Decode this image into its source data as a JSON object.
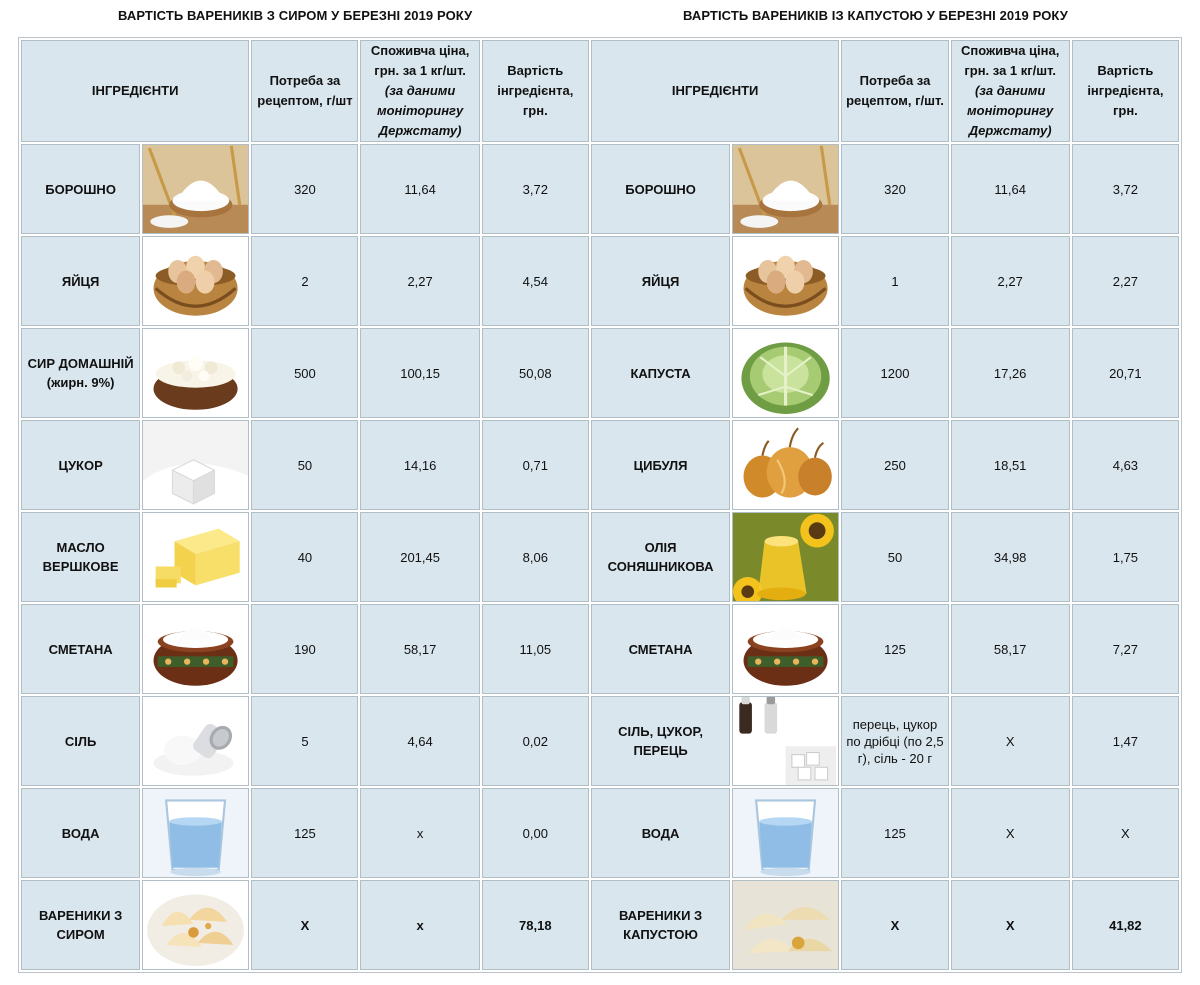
{
  "titles": {
    "left": "ВАРТІСТЬ ВАРЕНИКІВ З СИРОМ У БЕРЕЗНІ 2019 РОКУ",
    "right": "ВАРТІСТЬ ВАРЕНИКІВ ІЗ КАПУСТОЮ У БЕРЕЗНІ 2019 РОКУ"
  },
  "headers": {
    "ingredients": "ІНГРЕДІЄНТИ",
    "need_left": "Потреба за рецептом, г/шт",
    "need_right": "Потреба за рецептом, г/шт.",
    "price_main": "Споживча ціна, грн. за 1 кг/шт.",
    "price_note": "(за даними моніторингу Держстату)",
    "cost": "Вартість інгредієнта, грн."
  },
  "left_rows": [
    {
      "name": "БОРОШНО",
      "icon": "flour-image",
      "need": "320",
      "price": "11,64",
      "cost": "3,72"
    },
    {
      "name": "ЯЙЦЯ",
      "icon": "eggs-image",
      "need": "2",
      "price": "2,27",
      "cost": "4,54"
    },
    {
      "name": "СИР ДОМАШНІЙ (жирн. 9%)",
      "icon": "cottage-cheese-image",
      "need": "500",
      "price": "100,15",
      "cost": "50,08"
    },
    {
      "name": "ЦУКОР",
      "icon": "sugar-image",
      "need": "50",
      "price": "14,16",
      "cost": "0,71"
    },
    {
      "name": "МАСЛО ВЕРШКОВЕ",
      "icon": "butter-image",
      "need": "40",
      "price": "201,45",
      "cost": "8,06"
    },
    {
      "name": "СМЕТАНА",
      "icon": "sour-cream-image",
      "need": "190",
      "price": "58,17",
      "cost": "11,05"
    },
    {
      "name": "СІЛЬ",
      "icon": "salt-image",
      "need": "5",
      "price": "4,64",
      "cost": "0,02"
    },
    {
      "name": "ВОДА",
      "icon": "water-glass-image",
      "need": "125",
      "price": "x",
      "cost": "0,00"
    },
    {
      "name": "ВАРЕНИКИ З СИРОМ",
      "icon": "varenyky-cheese-image",
      "need": "X",
      "price": "x",
      "cost": "78,18"
    }
  ],
  "right_rows": [
    {
      "name": "БОРОШНО",
      "icon": "flour-image",
      "need": "320",
      "price": "11,64",
      "cost": "3,72"
    },
    {
      "name": "ЯЙЦЯ",
      "icon": "eggs-image",
      "need": "1",
      "price": "2,27",
      "cost": "2,27"
    },
    {
      "name": "КАПУСТА",
      "icon": "cabbage-image",
      "need": "1200",
      "price": "17,26",
      "cost": "20,71"
    },
    {
      "name": "ЦИБУЛЯ",
      "icon": "onion-image",
      "need": "250",
      "price": "18,51",
      "cost": "4,63"
    },
    {
      "name": "ОЛІЯ СОНЯШНИКОВА",
      "icon": "sunflower-oil-image",
      "need": "50",
      "price": "34,98",
      "cost": "1,75"
    },
    {
      "name": "СМЕТАНА",
      "icon": "sour-cream-image",
      "need": "125",
      "price": "58,17",
      "cost": "7,27"
    },
    {
      "name": "СІЛЬ, ЦУКОР, ПЕРЕЦЬ",
      "icon": "spices-image",
      "need": "перець, цукор по дрібці (по 2,5 г), сіль - 20 г",
      "price": "Х",
      "cost": "1,47"
    },
    {
      "name": "ВОДА",
      "icon": "water-glass-image",
      "need": "125",
      "price": "Х",
      "cost": "Х"
    },
    {
      "name": "ВАРЕНИКИ З КАПУСТОЮ",
      "icon": "varenyky-cabbage-image",
      "need": "Х",
      "price": "Х",
      "cost": "41,82"
    }
  ]
}
